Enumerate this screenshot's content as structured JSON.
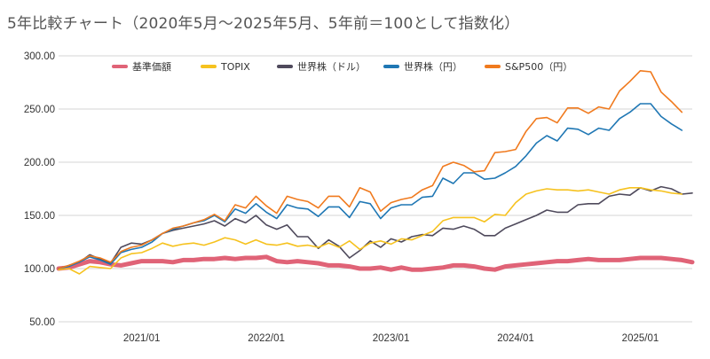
{
  "chart_data": {
    "type": "line",
    "title": "5年比較チャート（2020年5月〜2025年5月、5年前＝100として指数化）",
    "y_ticks": [
      "300.00",
      "250.00",
      "200.00",
      "150.00",
      "100.00",
      "50.00"
    ],
    "y_tick_values": [
      300,
      250,
      200,
      150,
      100,
      50
    ],
    "x_ticks": [
      "2021/01",
      "2022/01",
      "2023/01",
      "2024/01",
      "2025/01"
    ],
    "x_tick_values": [
      8,
      20,
      32,
      44,
      56
    ],
    "ylim": [
      50,
      300
    ],
    "xlim": [
      0,
      61
    ],
    "x_start": "2020/05",
    "grid": true,
    "legend_position": "top",
    "series": [
      {
        "name": "基準価額",
        "color": "#e06377",
        "width": 5,
        "values": [
          100,
          101,
          104,
          107,
          106,
          104,
          103,
          105,
          107,
          107,
          107,
          106,
          108,
          108,
          109,
          109,
          110,
          109,
          110,
          110,
          111,
          107,
          106,
          107,
          106,
          105,
          103,
          103,
          102,
          100,
          100,
          101,
          99,
          101,
          99,
          99,
          100,
          101,
          103,
          103,
          102,
          100,
          99,
          102,
          103,
          104,
          105,
          106,
          107,
          107,
          108,
          109,
          108,
          108,
          108,
          109,
          110,
          110,
          110,
          109,
          108,
          106
        ]
      },
      {
        "name": "TOPIX",
        "color": "#f6c21f",
        "width": 1.6,
        "values": [
          99,
          100,
          95,
          102,
          101,
          100,
          110,
          114,
          115,
          119,
          124,
          121,
          123,
          124,
          122,
          125,
          129,
          127,
          123,
          127,
          123,
          122,
          124,
          121,
          122,
          120,
          124,
          120,
          126,
          118,
          124,
          126,
          123,
          128,
          127,
          131,
          135,
          145,
          148,
          148,
          148,
          144,
          151,
          150,
          162,
          170,
          173,
          175,
          174,
          174,
          173,
          174,
          172,
          170,
          174,
          176,
          176,
          174,
          173,
          171,
          170
        ]
      },
      {
        "name": "世界株（ドル）",
        "color": "#4f4a5c",
        "width": 1.6,
        "values": [
          100,
          103,
          106,
          113,
          109,
          105,
          120,
          124,
          123,
          127,
          133,
          136,
          138,
          140,
          142,
          145,
          140,
          147,
          143,
          150,
          141,
          137,
          141,
          130,
          130,
          119,
          127,
          121,
          110,
          117,
          126,
          120,
          128,
          125,
          130,
          132,
          131,
          138,
          137,
          140,
          137,
          131,
          131,
          138,
          142,
          146,
          150,
          155,
          153,
          153,
          160,
          161,
          161,
          168,
          170,
          169,
          176,
          173,
          177,
          175,
          170,
          171
        ]
      },
      {
        "name": "世界株（円）",
        "color": "#1f77b4",
        "width": 1.6,
        "values": [
          100,
          102,
          106,
          111,
          108,
          104,
          115,
          118,
          120,
          125,
          133,
          137,
          140,
          143,
          145,
          150,
          144,
          156,
          152,
          161,
          153,
          147,
          160,
          157,
          156,
          149,
          158,
          158,
          148,
          163,
          161,
          147,
          157,
          160,
          160,
          167,
          168,
          185,
          180,
          190,
          190,
          184,
          185,
          190,
          196,
          206,
          218,
          225,
          220,
          232,
          231,
          226,
          232,
          230,
          241,
          247,
          255,
          255,
          243,
          236,
          230
        ]
      },
      {
        "name": "S&P500（円）",
        "color": "#f07a1e",
        "width": 1.6,
        "values": [
          100,
          103,
          107,
          112,
          110,
          106,
          116,
          120,
          122,
          127,
          133,
          138,
          140,
          143,
          146,
          151,
          145,
          160,
          157,
          168,
          159,
          152,
          168,
          165,
          163,
          157,
          168,
          168,
          158,
          176,
          172,
          154,
          162,
          165,
          167,
          174,
          178,
          196,
          200,
          197,
          191,
          192,
          209,
          210,
          212,
          229,
          241,
          242,
          237,
          251,
          251,
          246,
          252,
          250,
          267,
          276,
          286,
          285,
          266,
          257,
          247
        ]
      }
    ]
  }
}
